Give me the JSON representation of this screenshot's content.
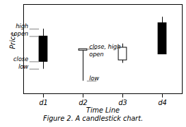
{
  "chart_data": {
    "type": "candlestick",
    "title": "Figure 2. A candlestick chart.",
    "xlabel": "Time Line",
    "ylabel": "Price",
    "categories": [
      "d1",
      "d2",
      "d3",
      "d4"
    ],
    "open": [
      8.2,
      6.3,
      6.7,
      10.0
    ],
    "high": [
      9.2,
      6.5,
      7.2,
      10.8
    ],
    "low": [
      3.8,
      2.2,
      4.6,
      5.8
    ],
    "close": [
      4.8,
      6.5,
      5.0,
      5.8
    ],
    "colors": [
      "black",
      "white",
      "white",
      "black"
    ],
    "ylim": [
      0.5,
      12.5
    ],
    "yticks": [],
    "tick_labels": "x",
    "annotations": [
      {
        "text": "high",
        "x": "d1",
        "y": 9.2
      },
      {
        "text": "open",
        "x": "d1",
        "y": 8.2
      },
      {
        "text": "close",
        "x": "d1",
        "y": 4.8
      },
      {
        "text": "low",
        "x": "d1",
        "y": 3.8
      },
      {
        "text": "close, high",
        "x": "d2",
        "y": 6.5
      },
      {
        "text": "open",
        "x": "d2",
        "y": 6.3
      },
      {
        "text": "low",
        "x": "d2",
        "y": 2.2
      }
    ]
  }
}
